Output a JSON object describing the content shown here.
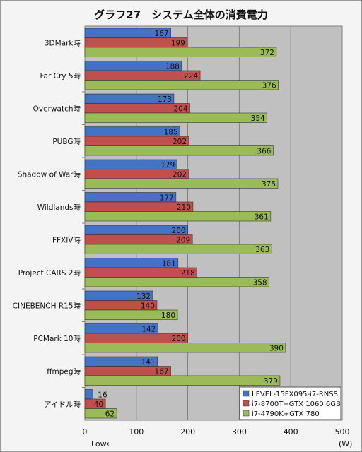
{
  "chart_data": {
    "type": "bar",
    "orientation": "horizontal",
    "title": "グラフ27　システム全体の消費電力",
    "categories": [
      "3DMark時",
      "Far Cry 5時",
      "Overwatch時",
      "PUBG時",
      "Shadow of War時",
      "Wildlands時",
      "FFXIV時",
      "Project CARS 2時",
      "CINEBENCH R15時",
      "PCMark 10時",
      "ffmpeg時",
      "アイドル時"
    ],
    "series": [
      {
        "name": "LEVEL-15FX095-i7-RNSS",
        "color": "#4472c4",
        "values": [
          167,
          188,
          173,
          185,
          179,
          177,
          200,
          181,
          132,
          142,
          141,
          16
        ]
      },
      {
        "name": "i7-8700T+GTX 1060 6GB",
        "color": "#c0504d",
        "values": [
          199,
          224,
          204,
          202,
          202,
          210,
          209,
          218,
          140,
          200,
          167,
          40
        ]
      },
      {
        "name": "i7-4790K+GTX 780",
        "color": "#9bbb59",
        "values": [
          372,
          376,
          354,
          366,
          375,
          361,
          363,
          358,
          180,
          390,
          379,
          62
        ]
      }
    ],
    "xlim": [
      0,
      500
    ],
    "xticks": [
      0,
      100,
      200,
      300,
      400,
      500
    ],
    "xlabel_left": "Low←",
    "xlabel_unit": "(W)",
    "grid": true,
    "legend_position": "bottom-right"
  }
}
